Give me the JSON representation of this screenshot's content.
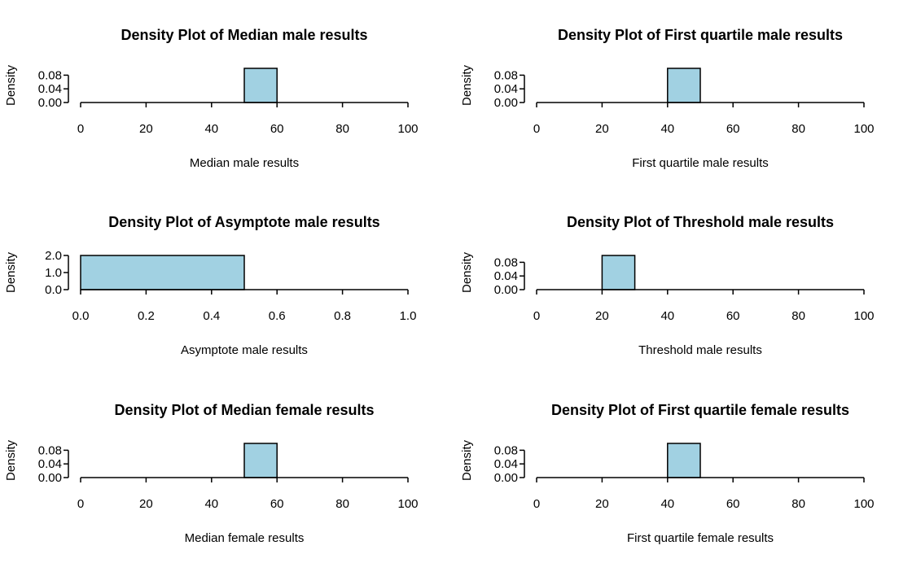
{
  "colors": {
    "bar_fill": "#a1d1e2",
    "bar_stroke": "#000000",
    "background": "#ffffff"
  },
  "chart_data": [
    {
      "type": "bar",
      "title": "Density Plot of Median male results",
      "xlabel": "Median male results",
      "ylabel": "Density",
      "xlim": [
        0,
        100
      ],
      "ylim": [
        0,
        0.1
      ],
      "x_ticks": [
        "0",
        "20",
        "40",
        "60",
        "80",
        "100"
      ],
      "y_ticks": [
        "0.00",
        "0.04",
        "0.08"
      ],
      "bins": [
        {
          "from": 50,
          "to": 60,
          "density": 0.1
        }
      ],
      "grid": false
    },
    {
      "type": "bar",
      "title": "Density Plot of First quartile male results",
      "xlabel": "First quartile male results",
      "ylabel": "Density",
      "xlim": [
        0,
        100
      ],
      "ylim": [
        0,
        0.1
      ],
      "x_ticks": [
        "0",
        "20",
        "40",
        "60",
        "80",
        "100"
      ],
      "y_ticks": [
        "0.00",
        "0.04",
        "0.08"
      ],
      "bins": [
        {
          "from": 40,
          "to": 50,
          "density": 0.1
        }
      ],
      "grid": false
    },
    {
      "type": "bar",
      "title": "Density Plot of Asymptote male results",
      "xlabel": "Asymptote male results",
      "ylabel": "Density",
      "xlim": [
        0,
        1
      ],
      "ylim": [
        0,
        2
      ],
      "x_ticks": [
        "0.0",
        "0.2",
        "0.4",
        "0.6",
        "0.8",
        "1.0"
      ],
      "y_ticks": [
        "0.0",
        "1.0",
        "2.0"
      ],
      "bins": [
        {
          "from": 0,
          "to": 0.5,
          "density": 2.0
        }
      ],
      "grid": false
    },
    {
      "type": "bar",
      "title": "Density Plot of Threshold male results",
      "xlabel": "Threshold male results",
      "ylabel": "Density",
      "xlim": [
        0,
        100
      ],
      "ylim": [
        0,
        0.1
      ],
      "x_ticks": [
        "0",
        "20",
        "40",
        "60",
        "80",
        "100"
      ],
      "y_ticks": [
        "0.00",
        "0.04",
        "0.08"
      ],
      "bins": [
        {
          "from": 20,
          "to": 30,
          "density": 0.1
        }
      ],
      "grid": false
    },
    {
      "type": "bar",
      "title": "Density Plot of Median female results",
      "xlabel": "Median female results",
      "ylabel": "Density",
      "xlim": [
        0,
        100
      ],
      "ylim": [
        0,
        0.1
      ],
      "x_ticks": [
        "0",
        "20",
        "40",
        "60",
        "80",
        "100"
      ],
      "y_ticks": [
        "0.00",
        "0.04",
        "0.08"
      ],
      "bins": [
        {
          "from": 50,
          "to": 60,
          "density": 0.1
        }
      ],
      "grid": false
    },
    {
      "type": "bar",
      "title": "Density Plot of First quartile female results",
      "xlabel": "First quartile female results",
      "ylabel": "Density",
      "xlim": [
        0,
        100
      ],
      "ylim": [
        0,
        0.1
      ],
      "x_ticks": [
        "0",
        "20",
        "40",
        "60",
        "80",
        "100"
      ],
      "y_ticks": [
        "0.00",
        "0.04",
        "0.08"
      ],
      "bins": [
        {
          "from": 40,
          "to": 50,
          "density": 0.1
        }
      ],
      "grid": false
    }
  ]
}
